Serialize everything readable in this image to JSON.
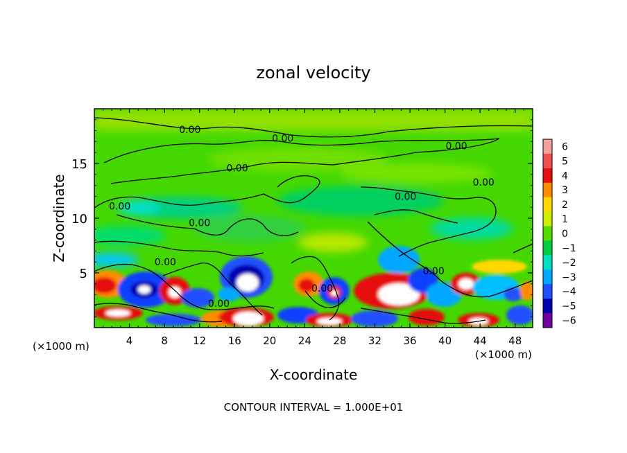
{
  "chart_data": {
    "type": "heatmap",
    "title": "zonal velocity",
    "xlabel": "X-coordinate",
    "ylabel": "Z-coordinate",
    "x_unit": "(×1000 m)",
    "x_unit_right": "(×1000 m)",
    "xlim": [
      0,
      50
    ],
    "ylim": [
      0,
      20
    ],
    "x_ticks": [
      "4",
      "8",
      "12",
      "16",
      "20",
      "24",
      "28",
      "32",
      "36",
      "40",
      "44",
      "48"
    ],
    "x_tick_values": [
      4,
      8,
      12,
      16,
      20,
      24,
      28,
      32,
      36,
      40,
      44,
      48
    ],
    "y_ticks": [
      "5",
      "10",
      "15"
    ],
    "y_tick_values": [
      5,
      10,
      15
    ],
    "footer": "CONTOUR INTERVAL = 1.000E+01",
    "colorbar": {
      "labels": [
        "6",
        "5",
        "4",
        "3",
        "2",
        "1",
        "0",
        "−1",
        "−2",
        "−3",
        "−4",
        "−5",
        "−6"
      ],
      "values": [
        6,
        5,
        4,
        3,
        2,
        1,
        0,
        -1,
        -2,
        -3,
        -4,
        -5,
        -6
      ],
      "colors": [
        "#f4a0a0",
        "#f05050",
        "#e61010",
        "#ff8c00",
        "#ffd800",
        "#ccee00",
        "#55dd00",
        "#00cc44",
        "#00e0c0",
        "#00a8ff",
        "#2050ff",
        "#0000b0",
        "#7000a0"
      ]
    },
    "contour_labels": [
      {
        "text": "0.00",
        "x": 10.9,
        "y": 18.1
      },
      {
        "text": "0.00",
        "x": 21.5,
        "y": 17.3
      },
      {
        "text": "0.00",
        "x": 41.3,
        "y": 16.6
      },
      {
        "text": "0.00",
        "x": 16.3,
        "y": 14.6
      },
      {
        "text": "0.00",
        "x": 44.4,
        "y": 13.3
      },
      {
        "text": "0.00",
        "x": 2.9,
        "y": 11.1
      },
      {
        "text": "0.00",
        "x": 35.5,
        "y": 12.0
      },
      {
        "text": "0.00",
        "x": 12.0,
        "y": 9.6
      },
      {
        "text": "0.00",
        "x": 8.1,
        "y": 6.0
      },
      {
        "text": "0.00",
        "x": 38.7,
        "y": 5.2
      },
      {
        "text": "0.00",
        "x": 26.0,
        "y": 3.6
      },
      {
        "text": "0.00",
        "x": 14.2,
        "y": 2.2
      }
    ]
  }
}
